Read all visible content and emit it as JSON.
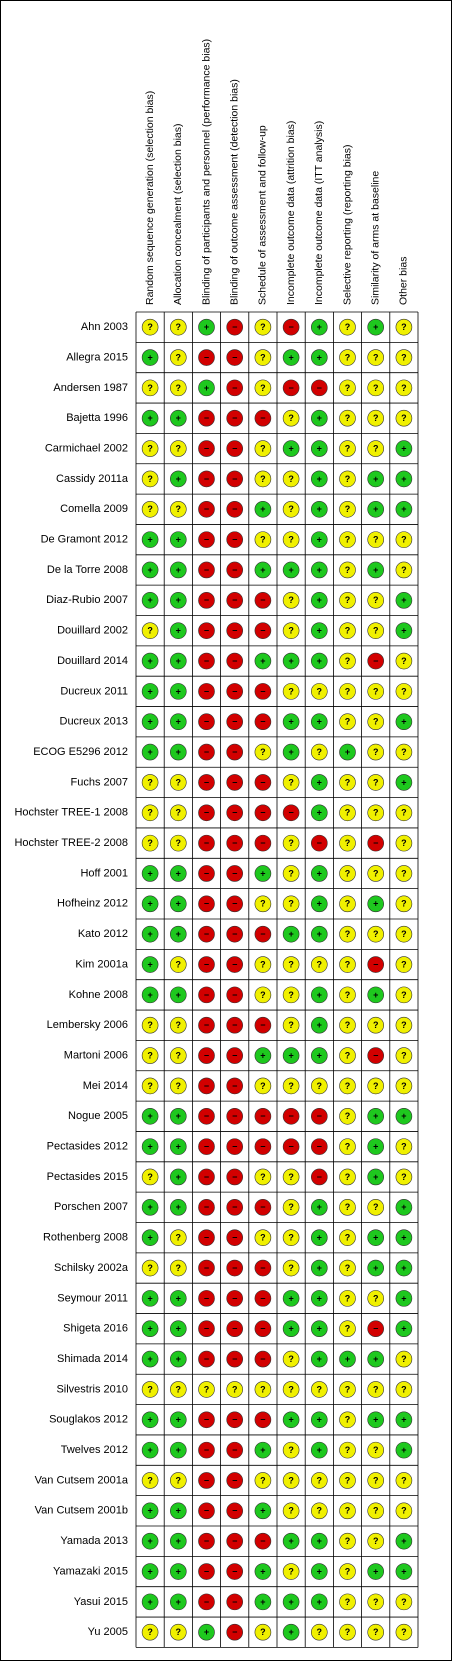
{
  "table": {
    "columns": [
      "Random sequence generation (selection bias)",
      "Allocation concealment (selection bias)",
      "Blinding of participants and personnel (performance bias)",
      "Blinding of outcome assessment (detection bias)",
      "Schedule of assessment and follow-up",
      "Incomplete outcome data (attrition bias)",
      "Incomplete outcome data (ITT analysis)",
      "Selective reporting (reporting bias)",
      "Similarity of arms at baseline",
      "Other bias"
    ],
    "colors": {
      "+": "#1ec81e",
      "?": "#f0f000",
      "−": "#d20000"
    },
    "rows": [
      {
        "name": "Ahn 2003",
        "judgments": [
          "?",
          "?",
          "+",
          "−",
          "?",
          "−",
          "+",
          "?",
          "+",
          "?"
        ]
      },
      {
        "name": "Allegra 2015",
        "judgments": [
          "+",
          "?",
          "−",
          "−",
          "?",
          "+",
          "+",
          "?",
          "?",
          "?"
        ]
      },
      {
        "name": "Andersen 1987",
        "judgments": [
          "?",
          "?",
          "+",
          "−",
          "?",
          "−",
          "−",
          "?",
          "?",
          "?"
        ]
      },
      {
        "name": "Bajetta 1996",
        "judgments": [
          "+",
          "+",
          "−",
          "−",
          "−",
          "?",
          "+",
          "?",
          "?",
          "?"
        ]
      },
      {
        "name": "Carmichael 2002",
        "judgments": [
          "?",
          "?",
          "−",
          "−",
          "?",
          "+",
          "+",
          "?",
          "?",
          "+"
        ]
      },
      {
        "name": "Cassidy 2011a",
        "judgments": [
          "?",
          "+",
          "−",
          "−",
          "?",
          "?",
          "+",
          "?",
          "+",
          "+"
        ]
      },
      {
        "name": "Comella 2009",
        "judgments": [
          "?",
          "?",
          "−",
          "−",
          "+",
          "?",
          "+",
          "?",
          "+",
          "+"
        ]
      },
      {
        "name": "De Gramont 2012",
        "judgments": [
          "+",
          "+",
          "−",
          "−",
          "?",
          "?",
          "+",
          "?",
          "?",
          "?"
        ]
      },
      {
        "name": "De la Torre 2008",
        "judgments": [
          "+",
          "+",
          "−",
          "−",
          "+",
          "+",
          "+",
          "?",
          "+",
          "?"
        ]
      },
      {
        "name": "Diaz-Rubio 2007",
        "judgments": [
          "+",
          "+",
          "−",
          "−",
          "−",
          "?",
          "+",
          "?",
          "?",
          "+"
        ]
      },
      {
        "name": "Douillard 2002",
        "judgments": [
          "?",
          "+",
          "−",
          "−",
          "−",
          "?",
          "+",
          "?",
          "?",
          "+"
        ]
      },
      {
        "name": "Douillard 2014",
        "judgments": [
          "+",
          "+",
          "−",
          "−",
          "+",
          "+",
          "+",
          "?",
          "−",
          "?"
        ]
      },
      {
        "name": "Ducreux 2011",
        "judgments": [
          "+",
          "+",
          "−",
          "−",
          "−",
          "?",
          "?",
          "?",
          "?",
          "?"
        ]
      },
      {
        "name": "Ducreux 2013",
        "judgments": [
          "+",
          "+",
          "−",
          "−",
          "−",
          "+",
          "+",
          "?",
          "?",
          "+"
        ]
      },
      {
        "name": "ECOG E5296 2012",
        "judgments": [
          "+",
          "+",
          "−",
          "−",
          "?",
          "+",
          "?",
          "+",
          "?",
          "?"
        ]
      },
      {
        "name": "Fuchs 2007",
        "judgments": [
          "?",
          "?",
          "−",
          "−",
          "−",
          "?",
          "+",
          "?",
          "?",
          "+"
        ]
      },
      {
        "name": "Hochster TREE-1 2008",
        "judgments": [
          "?",
          "?",
          "−",
          "−",
          "−",
          "−",
          "+",
          "?",
          "?",
          "?"
        ]
      },
      {
        "name": "Hochster TREE-2 2008",
        "judgments": [
          "?",
          "?",
          "−",
          "−",
          "−",
          "?",
          "−",
          "?",
          "−",
          "?"
        ]
      },
      {
        "name": "Hoff 2001",
        "judgments": [
          "+",
          "+",
          "−",
          "−",
          "+",
          "?",
          "+",
          "?",
          "?",
          "?"
        ]
      },
      {
        "name": "Hofheinz 2012",
        "judgments": [
          "+",
          "+",
          "−",
          "−",
          "?",
          "?",
          "+",
          "?",
          "+",
          "?"
        ]
      },
      {
        "name": "Kato 2012",
        "judgments": [
          "+",
          "+",
          "−",
          "−",
          "−",
          "+",
          "+",
          "?",
          "?",
          "?"
        ]
      },
      {
        "name": "Kim 2001a",
        "judgments": [
          "+",
          "?",
          "−",
          "−",
          "?",
          "?",
          "?",
          "?",
          "−",
          "?"
        ]
      },
      {
        "name": "Kohne 2008",
        "judgments": [
          "+",
          "+",
          "−",
          "−",
          "?",
          "?",
          "+",
          "?",
          "+",
          "?"
        ]
      },
      {
        "name": "Lembersky 2006",
        "judgments": [
          "?",
          "?",
          "−",
          "−",
          "−",
          "?",
          "+",
          "?",
          "?",
          "?"
        ]
      },
      {
        "name": "Martoni 2006",
        "judgments": [
          "?",
          "?",
          "−",
          "−",
          "+",
          "+",
          "+",
          "?",
          "−",
          "?"
        ]
      },
      {
        "name": "Mei 2014",
        "judgments": [
          "?",
          "?",
          "−",
          "−",
          "?",
          "?",
          "?",
          "?",
          "?",
          "?"
        ]
      },
      {
        "name": "Nogue 2005",
        "judgments": [
          "+",
          "+",
          "−",
          "−",
          "−",
          "−",
          "−",
          "?",
          "+",
          "+"
        ]
      },
      {
        "name": "Pectasides 2012",
        "judgments": [
          "+",
          "+",
          "−",
          "−",
          "−",
          "−",
          "−",
          "?",
          "+",
          "?"
        ]
      },
      {
        "name": "Pectasides 2015",
        "judgments": [
          "?",
          "+",
          "−",
          "−",
          "?",
          "?",
          "−",
          "?",
          "+",
          "?"
        ]
      },
      {
        "name": "Porschen 2007",
        "judgments": [
          "+",
          "+",
          "−",
          "−",
          "−",
          "?",
          "+",
          "?",
          "?",
          "+"
        ]
      },
      {
        "name": "Rothenberg 2008",
        "judgments": [
          "+",
          "?",
          "−",
          "−",
          "?",
          "?",
          "+",
          "?",
          "+",
          "+"
        ]
      },
      {
        "name": "Schilsky 2002a",
        "judgments": [
          "?",
          "?",
          "−",
          "−",
          "−",
          "?",
          "+",
          "?",
          "+",
          "+"
        ]
      },
      {
        "name": "Seymour 2011",
        "judgments": [
          "+",
          "+",
          "−",
          "−",
          "−",
          "+",
          "+",
          "?",
          "?",
          "+"
        ]
      },
      {
        "name": "Shigeta 2016",
        "judgments": [
          "+",
          "+",
          "−",
          "−",
          "−",
          "+",
          "+",
          "?",
          "−",
          "+"
        ]
      },
      {
        "name": "Shimada 2014",
        "judgments": [
          "+",
          "+",
          "−",
          "−",
          "−",
          "?",
          "+",
          "+",
          "+",
          "?"
        ]
      },
      {
        "name": "Silvestris 2010",
        "judgments": [
          "?",
          "?",
          "?",
          "?",
          "?",
          "?",
          "?",
          "?",
          "?",
          "?"
        ]
      },
      {
        "name": "Souglakos 2012",
        "judgments": [
          "+",
          "+",
          "−",
          "−",
          "−",
          "+",
          "+",
          "?",
          "+",
          "+"
        ]
      },
      {
        "name": "Twelves 2012",
        "judgments": [
          "+",
          "+",
          "−",
          "−",
          "+",
          "?",
          "+",
          "?",
          "?",
          "+"
        ]
      },
      {
        "name": "Van Cutsem 2001a",
        "judgments": [
          "?",
          "?",
          "−",
          "−",
          "?",
          "?",
          "?",
          "?",
          "?",
          "?"
        ]
      },
      {
        "name": "Van Cutsem 2001b",
        "judgments": [
          "+",
          "+",
          "−",
          "−",
          "+",
          "?",
          "?",
          "?",
          "?",
          "?"
        ]
      },
      {
        "name": "Yamada 2013",
        "judgments": [
          "+",
          "+",
          "−",
          "−",
          "−",
          "+",
          "+",
          "?",
          "?",
          "+"
        ]
      },
      {
        "name": "Yamazaki 2015",
        "judgments": [
          "+",
          "+",
          "−",
          "−",
          "+",
          "?",
          "+",
          "?",
          "+",
          "+"
        ]
      },
      {
        "name": "Yasui 2015",
        "judgments": [
          "+",
          "+",
          "−",
          "−",
          "+",
          "+",
          "+",
          "?",
          "?",
          "?"
        ]
      },
      {
        "name": "Yu 2005",
        "judgments": [
          "?",
          "?",
          "+",
          "−",
          "?",
          "+",
          "?",
          "?",
          "?",
          "?"
        ]
      }
    ]
  }
}
